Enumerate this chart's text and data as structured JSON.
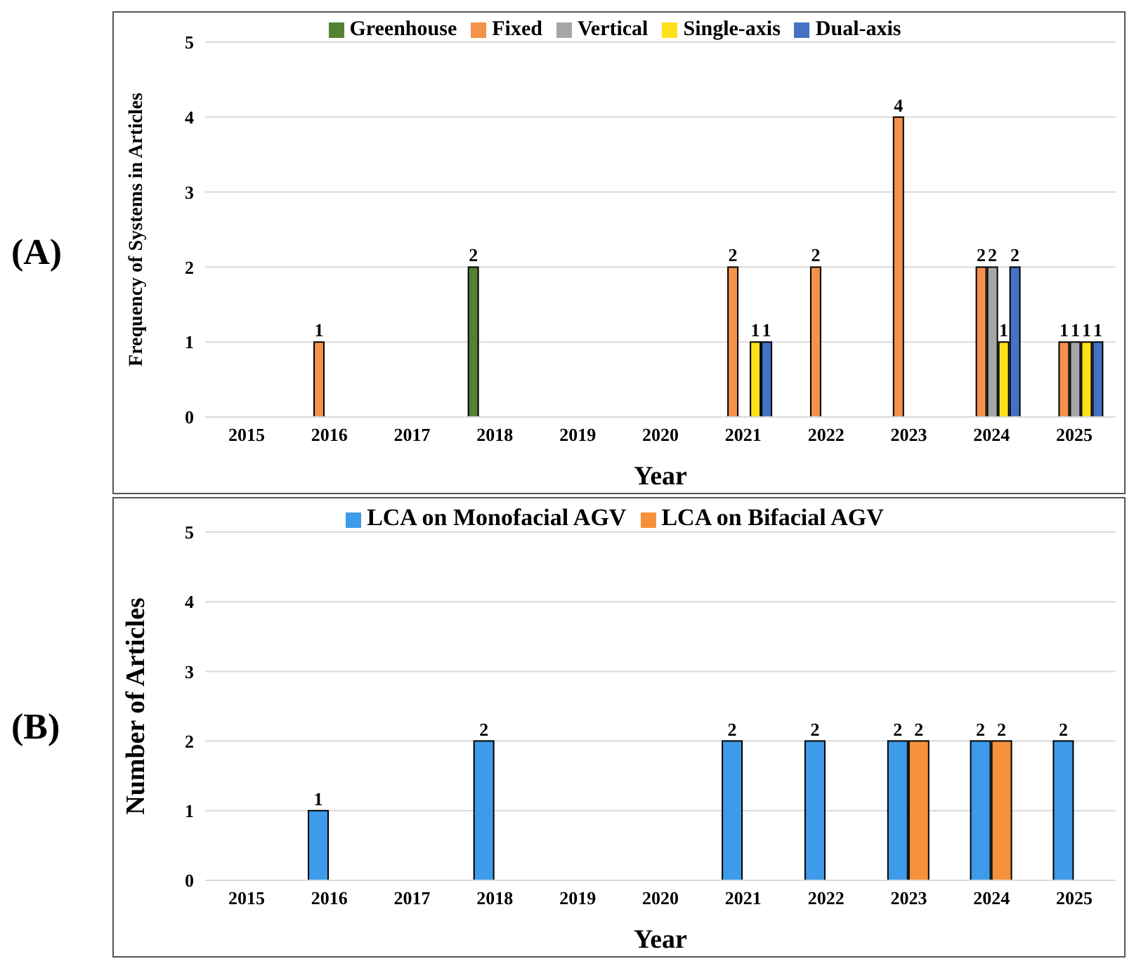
{
  "chart_data": [
    {
      "type": "bar",
      "annotations": [
        "(A)"
      ],
      "xlabel": "Year",
      "ylabel": "Frequency of Systems in Articles",
      "categories": [
        "2015",
        "2016",
        "2017",
        "2018",
        "2019",
        "2020",
        "2021",
        "2022",
        "2023",
        "2024",
        "2025"
      ],
      "series": [
        {
          "name": "Greenhouse",
          "color": "#548235",
          "values": [
            null,
            null,
            null,
            2,
            null,
            null,
            null,
            null,
            null,
            null,
            null
          ]
        },
        {
          "name": "Fixed",
          "color": "#f4914a",
          "values": [
            null,
            1,
            null,
            null,
            null,
            null,
            2,
            2,
            4,
            2,
            1
          ]
        },
        {
          "name": "Vertical",
          "color": "#a6a6a6",
          "values": [
            null,
            null,
            null,
            null,
            null,
            null,
            null,
            null,
            null,
            2,
            1
          ]
        },
        {
          "name": "Single-axis",
          "color": "#ffe11a",
          "values": [
            null,
            null,
            null,
            null,
            null,
            null,
            1,
            null,
            null,
            1,
            1
          ]
        },
        {
          "name": "Dual-axis",
          "color": "#4472c4",
          "values": [
            null,
            null,
            null,
            null,
            null,
            null,
            1,
            null,
            null,
            2,
            1
          ]
        }
      ],
      "ylim": [
        0,
        5
      ],
      "yticks": [
        0,
        1,
        2,
        3,
        4,
        5
      ],
      "grid": "y",
      "legend": "top",
      "data_labels": true
    },
    {
      "type": "bar",
      "annotations": [
        "(B)"
      ],
      "xlabel": "Year",
      "ylabel": "Number of Articles",
      "categories": [
        "2015",
        "2016",
        "2017",
        "2018",
        "2019",
        "2020",
        "2021",
        "2022",
        "2023",
        "2024",
        "2025"
      ],
      "series": [
        {
          "name": "LCA on Monofacial AGV",
          "color": "#3d9be9",
          "values": [
            null,
            1,
            null,
            2,
            null,
            null,
            2,
            2,
            2,
            2,
            2
          ]
        },
        {
          "name": "LCA on Bifacial AGV",
          "color": "#f4913a",
          "values": [
            null,
            null,
            null,
            null,
            null,
            null,
            null,
            null,
            2,
            2,
            null
          ]
        }
      ],
      "ylim": [
        0,
        5
      ],
      "yticks": [
        0,
        1,
        2,
        3,
        4,
        5
      ],
      "grid": "y",
      "legend": "top",
      "data_labels": true
    }
  ]
}
